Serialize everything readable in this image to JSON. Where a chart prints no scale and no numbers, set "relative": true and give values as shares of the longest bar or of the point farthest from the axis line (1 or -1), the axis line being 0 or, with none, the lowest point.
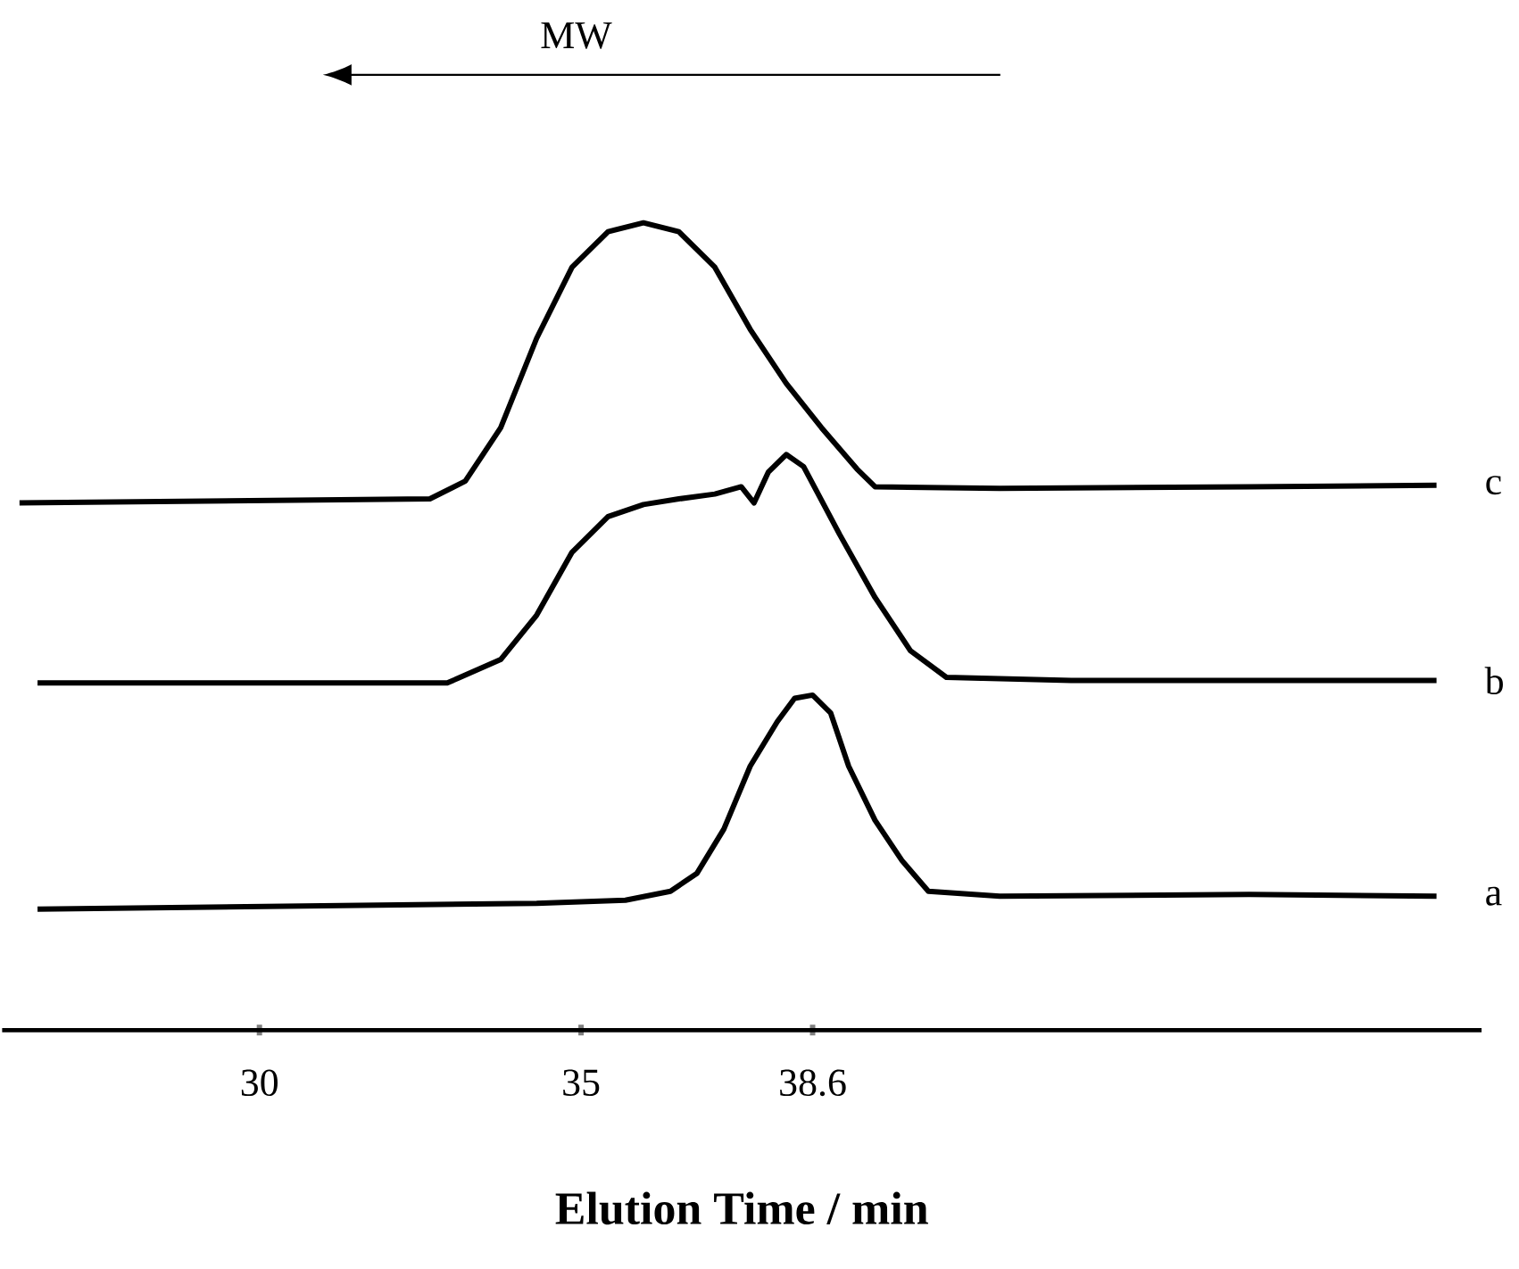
{
  "chart_data": {
    "type": "line",
    "relative": true,
    "xlabel": "Elution Time / min",
    "annotations": [
      "MW"
    ],
    "xlim": [
      26,
      49
    ],
    "xticks": [
      30,
      35,
      38.6
    ],
    "series": [
      {
        "name": "a",
        "color": "#000000",
        "x": [
          26.55,
          34.31,
          35.69,
          36.39,
          36.8,
          37.22,
          37.63,
          38.05,
          38.32,
          38.6,
          38.88,
          39.16,
          39.57,
          39.99,
          40.4,
          41.51,
          45.39,
          48.3
        ],
        "values": [
          0.15,
          0.157,
          0.161,
          0.172,
          0.194,
          0.249,
          0.327,
          0.382,
          0.411,
          0.415,
          0.393,
          0.327,
          0.26,
          0.21,
          0.172,
          0.166,
          0.168,
          0.166
        ]
      },
      {
        "name": "b",
        "color": "#000000",
        "x": [
          26.55,
          32.92,
          33.75,
          34.31,
          34.86,
          35.42,
          35.97,
          36.52,
          37.08,
          37.49,
          37.69,
          37.91,
          38.19,
          38.46,
          39.02,
          39.57,
          40.12,
          40.68,
          42.62,
          48.3
        ],
        "values": [
          0.43,
          0.43,
          0.459,
          0.514,
          0.592,
          0.636,
          0.651,
          0.658,
          0.664,
          0.673,
          0.653,
          0.691,
          0.713,
          0.698,
          0.614,
          0.536,
          0.47,
          0.437,
          0.433,
          0.433
        ]
      },
      {
        "name": "c",
        "color": "#000000",
        "x": [
          26.27,
          32.65,
          33.2,
          33.75,
          34.31,
          34.86,
          35.42,
          35.97,
          36.52,
          37.08,
          37.63,
          38.19,
          38.74,
          39.29,
          39.57,
          41.51,
          45.39,
          48.3
        ],
        "values": [
          0.653,
          0.658,
          0.68,
          0.746,
          0.857,
          0.945,
          0.989,
          1.0,
          0.989,
          0.945,
          0.868,
          0.801,
          0.746,
          0.695,
          0.673,
          0.671,
          0.673,
          0.675
        ]
      }
    ]
  }
}
